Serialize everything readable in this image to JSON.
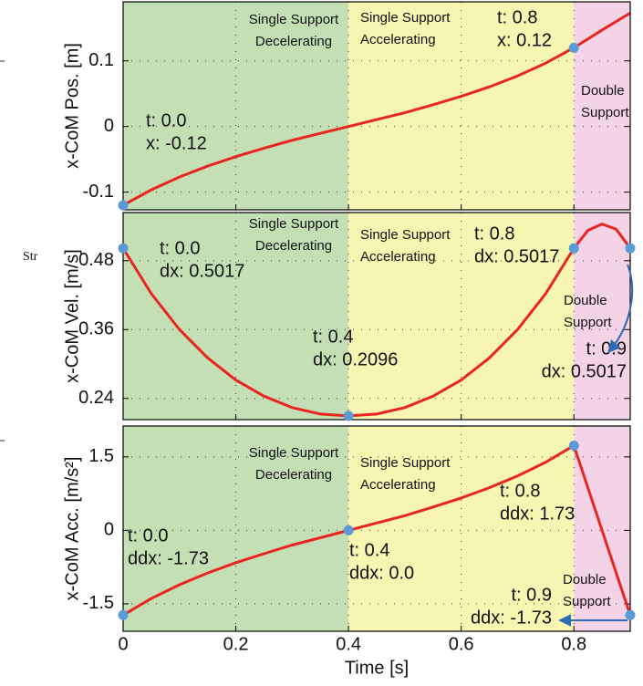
{
  "stray_text": "Str",
  "chart_data": [
    {
      "type": "line",
      "ylabel": "x-CoM Pos. [m]",
      "xlim": [
        0,
        0.9
      ],
      "xticks": [
        0,
        0.2,
        0.4,
        0.6,
        0.8
      ],
      "ylim": [
        -0.127,
        0.19
      ],
      "yticks": [
        -0.1,
        0,
        0.1
      ],
      "grid": true,
      "regions": [
        {
          "from": 0,
          "to": 0.4,
          "color": "#c5dfb4",
          "label": [
            "Single Support",
            "Decelerating"
          ]
        },
        {
          "from": 0.4,
          "to": 0.8,
          "color": "#f7f5b2",
          "label": [
            "Single Support",
            "Accelerating"
          ]
        },
        {
          "from": 0.8,
          "to": 0.9,
          "color": "#f4d3e6",
          "label": [
            "Double",
            "Support"
          ]
        }
      ],
      "series": [
        {
          "color": "#e8251f",
          "x": [
            0,
            0.05,
            0.1,
            0.15,
            0.2,
            0.25,
            0.3,
            0.35,
            0.4,
            0.45,
            0.5,
            0.55,
            0.6,
            0.65,
            0.7,
            0.75,
            0.8,
            0.85,
            0.9
          ],
          "values": [
            -0.12,
            -0.0966,
            -0.077,
            -0.0604,
            -0.046,
            -0.0331,
            -0.021,
            -0.0105,
            0,
            0.0105,
            0.021,
            0.0331,
            0.046,
            0.0604,
            0.077,
            0.0966,
            0.12,
            0.147,
            0.173
          ]
        }
      ],
      "points": {
        "color": "#5b9bd5",
        "x": [
          0,
          0.8
        ],
        "values": [
          -0.12,
          0.12
        ]
      },
      "annotations": [
        [
          "t: 0.0",
          "x: -0.12"
        ],
        [
          "t: 0.8",
          "x: 0.12"
        ]
      ]
    },
    {
      "type": "line",
      "ylabel": "x-CoM Vel. [m/s]",
      "xlim": [
        0,
        0.9
      ],
      "xticks": [
        0,
        0.2,
        0.4,
        0.6,
        0.8
      ],
      "ylim": [
        0.203,
        0.564
      ],
      "yticks": [
        0.24,
        0.36,
        0.48
      ],
      "grid": true,
      "regions": [
        {
          "from": 0,
          "to": 0.4,
          "color": "#c5dfb4",
          "label": [
            "Single Support",
            "Decelerating"
          ]
        },
        {
          "from": 0.4,
          "to": 0.8,
          "color": "#f7f5b2",
          "label": [
            "Single Support",
            "Accelerating"
          ]
        },
        {
          "from": 0.8,
          "to": 0.9,
          "color": "#f4d3e6",
          "label": [
            "Double",
            "Support"
          ]
        }
      ],
      "series": [
        {
          "color": "#e8251f",
          "x": [
            0,
            0.05,
            0.1,
            0.15,
            0.2,
            0.25,
            0.3,
            0.35,
            0.4,
            0.45,
            0.5,
            0.55,
            0.6,
            0.65,
            0.7,
            0.75,
            0.8,
            0.825,
            0.85,
            0.875,
            0.9
          ],
          "values": [
            0.5017,
            0.4226,
            0.36,
            0.3106,
            0.272,
            0.2439,
            0.224,
            0.2128,
            0.2096,
            0.2128,
            0.224,
            0.2439,
            0.272,
            0.3106,
            0.36,
            0.4226,
            0.5017,
            0.533,
            0.544,
            0.535,
            0.5017
          ]
        }
      ],
      "points": {
        "color": "#5b9bd5",
        "x": [
          0,
          0.4,
          0.8,
          0.9
        ],
        "values": [
          0.5017,
          0.2096,
          0.5017,
          0.5017
        ]
      },
      "annotations": [
        [
          "t: 0.0",
          "dx: 0.5017"
        ],
        [
          "t: 0.4",
          "dx: 0.2096"
        ],
        [
          "t: 0.8",
          "dx: 0.5017"
        ],
        [
          "t: 0.9",
          "dx: 0.5017"
        ]
      ]
    },
    {
      "type": "line",
      "ylabel": "x-CoM Acc. [m/s²]",
      "xlabel": "Time [s]",
      "xlim": [
        0,
        0.9
      ],
      "xticks": [
        0,
        0.2,
        0.4,
        0.6,
        0.8
      ],
      "ylim": [
        -2.06,
        2.13
      ],
      "yticks": [
        -1.5,
        0,
        1.5
      ],
      "grid": true,
      "regions": [
        {
          "from": 0,
          "to": 0.4,
          "color": "#c5dfb4",
          "label": [
            "Single Support",
            "Decelerating"
          ]
        },
        {
          "from": 0.4,
          "to": 0.8,
          "color": "#f7f5b2",
          "label": [
            "Single Support",
            "Accelerating"
          ]
        },
        {
          "from": 0.8,
          "to": 0.9,
          "color": "#f4d3e6",
          "label": [
            "Double",
            "Support"
          ]
        }
      ],
      "series": [
        {
          "color": "#e8251f",
          "x": [
            0,
            0.05,
            0.1,
            0.15,
            0.2,
            0.25,
            0.3,
            0.35,
            0.4,
            0.45,
            0.5,
            0.55,
            0.6,
            0.65,
            0.7,
            0.75,
            0.8,
            0.9
          ],
          "values": [
            -1.73,
            -1.391,
            -1.11,
            -0.87,
            -0.66,
            -0.477,
            -0.3,
            -0.151,
            0,
            0.151,
            0.3,
            0.477,
            0.66,
            0.87,
            1.11,
            1.391,
            1.73,
            -1.73
          ]
        }
      ],
      "points": {
        "color": "#5b9bd5",
        "x": [
          0,
          0.4,
          0.8,
          0.9
        ],
        "values": [
          -1.73,
          0,
          1.73,
          -1.73
        ]
      },
      "annotations": [
        [
          "t: 0.0",
          "ddx: -1.73"
        ],
        [
          "t: 0.4",
          "ddx: 0.0"
        ],
        [
          "t: 0.8",
          "ddx: 1.73"
        ],
        [
          "t: 0.9",
          "ddx: -1.73"
        ]
      ]
    }
  ]
}
